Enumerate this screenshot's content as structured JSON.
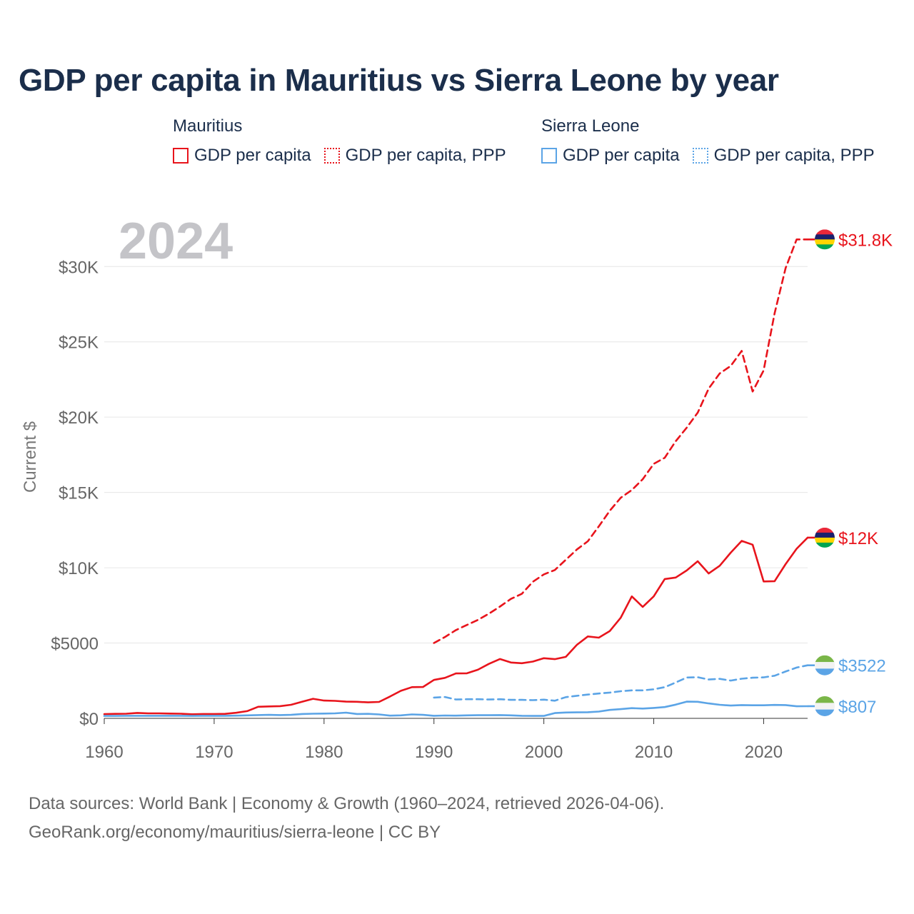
{
  "chart_data": {
    "type": "line",
    "title": "GDP per capita in Mauritius vs Sierra Leone by year",
    "year_label": "2024",
    "xlabel": "",
    "ylabel": "Current $",
    "xlim": [
      1960,
      2024
    ],
    "ylim": [
      0,
      33000
    ],
    "x_ticks": [
      1960,
      1970,
      1980,
      1990,
      2000,
      2010,
      2020
    ],
    "x_tick_labels": [
      "1960",
      "1970",
      "1980",
      "1990",
      "2000",
      "2010",
      "2020"
    ],
    "y_ticks": [
      0,
      5000,
      10000,
      15000,
      20000,
      25000,
      30000
    ],
    "y_tick_labels": [
      "$0",
      "$5000",
      "$10K",
      "$15K",
      "$20K",
      "$25K",
      "$30K"
    ],
    "grid": true,
    "legend": {
      "groups": [
        {
          "title": "Mauritius",
          "items": [
            {
              "label": "GDP per capita",
              "color": "#e8141c",
              "style": "solid"
            },
            {
              "label": "GDP per capita, PPP",
              "color": "#e8141c",
              "style": "dotted"
            }
          ]
        },
        {
          "title": "Sierra Leone",
          "items": [
            {
              "label": "GDP per capita",
              "color": "#5ba4e6",
              "style": "solid"
            },
            {
              "label": "GDP per capita, PPP",
              "color": "#5ba4e6",
              "style": "dotted"
            }
          ]
        }
      ]
    },
    "series": [
      {
        "name": "Mauritius GDP per capita",
        "country": "Mauritius",
        "color": "#e8141c",
        "dashed": false,
        "end_label": "$12K",
        "x": [
          1960,
          1961,
          1962,
          1963,
          1964,
          1965,
          1966,
          1967,
          1968,
          1969,
          1970,
          1971,
          1972,
          1973,
          1974,
          1975,
          1976,
          1977,
          1978,
          1979,
          1980,
          1981,
          1982,
          1983,
          1984,
          1985,
          1986,
          1987,
          1988,
          1989,
          1990,
          1991,
          1992,
          1993,
          1994,
          1995,
          1996,
          1997,
          1998,
          1999,
          2000,
          2001,
          2002,
          2003,
          2004,
          2005,
          2006,
          2007,
          2008,
          2009,
          2010,
          2011,
          2012,
          2013,
          2014,
          2015,
          2016,
          2017,
          2018,
          2019,
          2020,
          2021,
          2022,
          2023,
          2024
        ],
        "values": [
          280,
          300,
          310,
          360,
          330,
          330,
          320,
          310,
          270,
          290,
          290,
          300,
          370,
          480,
          770,
          790,
          810,
          900,
          1100,
          1300,
          1180,
          1160,
          1110,
          1100,
          1060,
          1090,
          1450,
          1830,
          2070,
          2080,
          2550,
          2690,
          2980,
          2990,
          3230,
          3620,
          3940,
          3710,
          3660,
          3770,
          3990,
          3930,
          4080,
          4880,
          5440,
          5360,
          5800,
          6690,
          8100,
          7400,
          8100,
          9250,
          9350,
          9820,
          10430,
          9620,
          10130,
          11000,
          11780,
          11530,
          9090,
          9110,
          10240,
          11260,
          12000
        ]
      },
      {
        "name": "Mauritius GDP per capita, PPP",
        "country": "Mauritius",
        "color": "#e8141c",
        "dashed": true,
        "end_label": "$31.8K",
        "x": [
          1990,
          1991,
          1992,
          1993,
          1994,
          1995,
          1996,
          1997,
          1998,
          1999,
          2000,
          2001,
          2002,
          2003,
          2004,
          2005,
          2006,
          2007,
          2008,
          2009,
          2010,
          2011,
          2012,
          2013,
          2014,
          2015,
          2016,
          2017,
          2018,
          2019,
          2020,
          2021,
          2022,
          2023,
          2024
        ],
        "values": [
          5000,
          5400,
          5860,
          6200,
          6540,
          6950,
          7420,
          7930,
          8270,
          9070,
          9560,
          9850,
          10530,
          11210,
          11760,
          12750,
          13790,
          14650,
          15160,
          15880,
          16900,
          17300,
          18400,
          19300,
          20300,
          21900,
          22900,
          23400,
          24400,
          21700,
          23100,
          26900,
          29900,
          31800,
          31800
        ]
      },
      {
        "name": "Sierra Leone GDP per capita",
        "country": "Sierra Leone",
        "color": "#5ba4e6",
        "dashed": false,
        "end_label": "$807",
        "x": [
          1960,
          1961,
          1962,
          1963,
          1964,
          1965,
          1966,
          1967,
          1968,
          1969,
          1970,
          1971,
          1972,
          1973,
          1974,
          1975,
          1976,
          1977,
          1978,
          1979,
          1980,
          1981,
          1982,
          1983,
          1984,
          1985,
          1986,
          1987,
          1988,
          1989,
          1990,
          1991,
          1992,
          1993,
          1994,
          1995,
          1996,
          1997,
          1998,
          1999,
          2000,
          2001,
          2002,
          2003,
          2004,
          2005,
          2006,
          2007,
          2008,
          2009,
          2010,
          2011,
          2012,
          2013,
          2014,
          2015,
          2016,
          2017,
          2018,
          2019,
          2020,
          2021,
          2022,
          2023,
          2024
        ],
        "values": [
          160,
          160,
          170,
          170,
          170,
          170,
          170,
          170,
          160,
          170,
          170,
          170,
          180,
          200,
          220,
          230,
          220,
          230,
          290,
          310,
          320,
          330,
          380,
          290,
          300,
          260,
          180,
          200,
          260,
          230,
          170,
          190,
          180,
          200,
          210,
          210,
          220,
          200,
          170,
          160,
          160,
          350,
          390,
          400,
          410,
          450,
          560,
          610,
          680,
          650,
          690,
          750,
          910,
          1110,
          1100,
          990,
          900,
          850,
          880,
          870,
          870,
          890,
          880,
          800,
          807
        ]
      },
      {
        "name": "Sierra Leone GDP per capita, PPP",
        "country": "Sierra Leone",
        "color": "#5ba4e6",
        "dashed": true,
        "end_label": "$3522",
        "x": [
          1990,
          1991,
          1992,
          1993,
          1994,
          1995,
          1996,
          1997,
          1998,
          1999,
          2000,
          2001,
          2002,
          2003,
          2004,
          2005,
          2006,
          2007,
          2008,
          2009,
          2010,
          2011,
          2012,
          2013,
          2014,
          2015,
          2016,
          2017,
          2018,
          2019,
          2020,
          2021,
          2022,
          2023,
          2024
        ],
        "values": [
          1380,
          1420,
          1250,
          1270,
          1270,
          1250,
          1270,
          1230,
          1230,
          1210,
          1240,
          1170,
          1410,
          1500,
          1580,
          1650,
          1710,
          1800,
          1860,
          1860,
          1930,
          2070,
          2380,
          2710,
          2730,
          2580,
          2620,
          2510,
          2630,
          2700,
          2720,
          2830,
          3110,
          3370,
          3522
        ]
      }
    ]
  },
  "footer": {
    "line1": "Data sources: World Bank | Economy & Growth (1960–2024, retrieved 2026-04-06).",
    "line2": "GeoRank.org/economy/mauritius/sierra-leone | CC BY"
  }
}
